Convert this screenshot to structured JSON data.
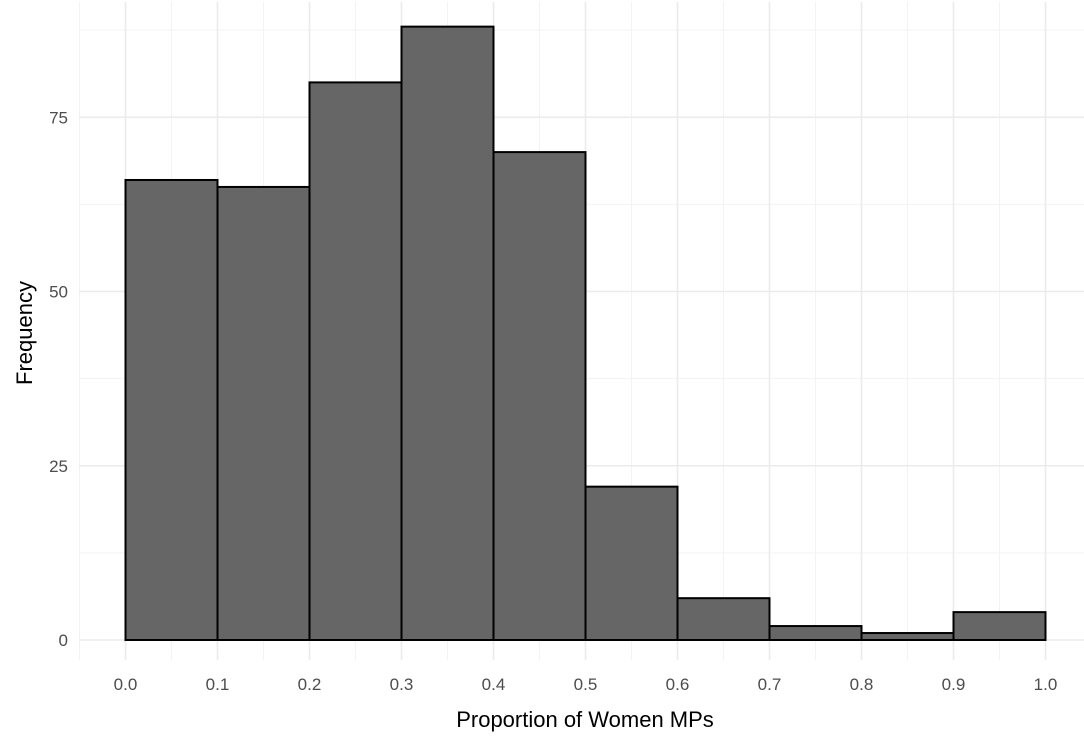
{
  "chart_data": {
    "type": "bar",
    "subtype": "histogram",
    "title": "",
    "xlabel": "Proportion of Women MPs",
    "ylabel": "Frequency",
    "xlim": [
      -0.05,
      1.04
    ],
    "ylim": [
      -4,
      90
    ],
    "x_ticks": [
      "0.0",
      "0.1",
      "0.2",
      "0.3",
      "0.4",
      "0.5",
      "0.6",
      "0.7",
      "0.8",
      "0.9",
      "1.0"
    ],
    "y_ticks": [
      "0",
      "25",
      "50",
      "75"
    ],
    "bins": [
      {
        "start": 0.0,
        "end": 0.1,
        "count": 66
      },
      {
        "start": 0.1,
        "end": 0.2,
        "count": 65
      },
      {
        "start": 0.2,
        "end": 0.3,
        "count": 80
      },
      {
        "start": 0.3,
        "end": 0.4,
        "count": 88
      },
      {
        "start": 0.4,
        "end": 0.5,
        "count": 70
      },
      {
        "start": 0.5,
        "end": 0.6,
        "count": 22
      },
      {
        "start": 0.6,
        "end": 0.7,
        "count": 6
      },
      {
        "start": 0.7,
        "end": 0.8,
        "count": 2
      },
      {
        "start": 0.8,
        "end": 0.9,
        "count": 1
      },
      {
        "start": 0.9,
        "end": 1.0,
        "count": 4
      }
    ],
    "grid": true,
    "legend": "none",
    "bar_fill": "#666666",
    "bar_stroke": "#000000"
  }
}
